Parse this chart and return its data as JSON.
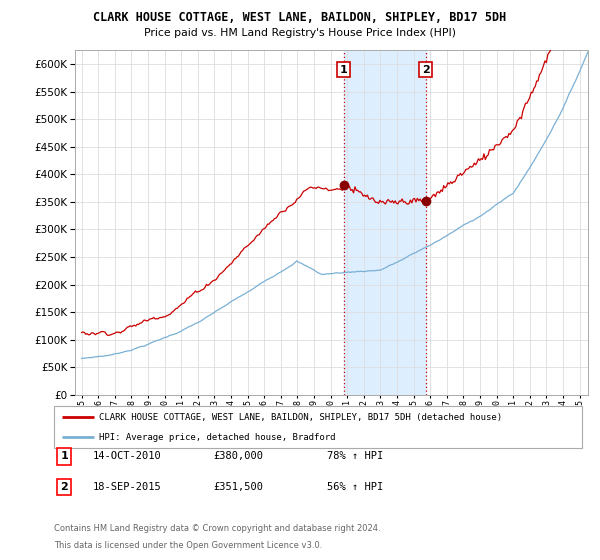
{
  "title": "CLARK HOUSE COTTAGE, WEST LANE, BAILDON, SHIPLEY, BD17 5DH",
  "subtitle": "Price paid vs. HM Land Registry's House Price Index (HPI)",
  "ylim": [
    0,
    620000
  ],
  "xlim": [
    1994.6,
    2025.5
  ],
  "sale1_year": 2010.79,
  "sale1_price": 380000,
  "sale1_label": "1",
  "sale1_date": "14-OCT-2010",
  "sale1_amount": "£380,000",
  "sale1_pct": "78% ↑ HPI",
  "sale2_year": 2015.72,
  "sale2_price": 351500,
  "sale2_label": "2",
  "sale2_date": "18-SEP-2015",
  "sale2_amount": "£351,500",
  "sale2_pct": "56% ↑ HPI",
  "legend_line1": "CLARK HOUSE COTTAGE, WEST LANE, BAILDON, SHIPLEY, BD17 5DH (detached house)",
  "legend_line2": "HPI: Average price, detached house, Bradford",
  "note1": "Contains HM Land Registry data © Crown copyright and database right 2024.",
  "note2": "This data is licensed under the Open Government Licence v3.0.",
  "house_color": "#cc0000",
  "hpi_color": "#7ab0d4",
  "shade_color": "#ddeeff",
  "grid_color": "#dddddd",
  "spine_color": "#aaaaaa"
}
